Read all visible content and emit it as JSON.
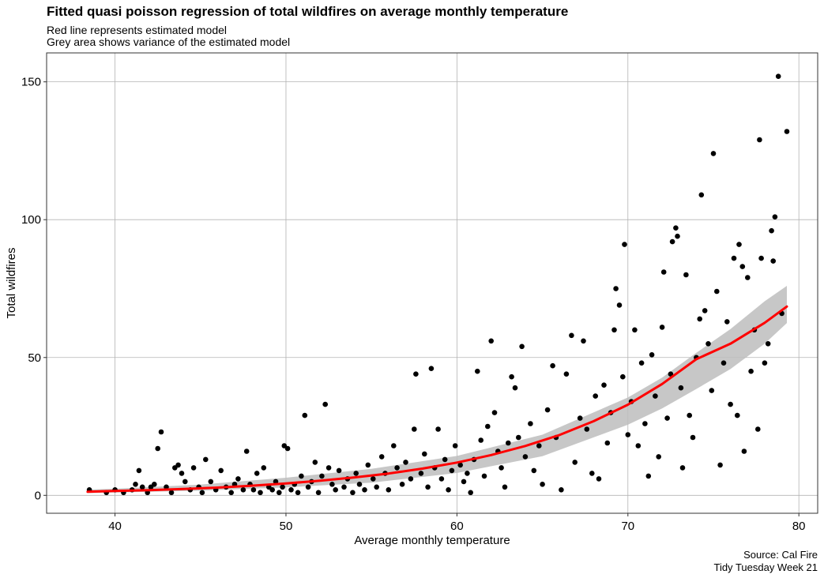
{
  "chart_data": {
    "type": "scatter",
    "title": "Fitted quasi poisson regression of total wildfires on average monthly temperature",
    "subtitle": [
      "Red line represents estimated model",
      "Grey area shows variance of the estimated model"
    ],
    "xlabel": "Average monthly temperature",
    "ylabel": "Total wildfires",
    "caption": [
      "Source: Cal Fire",
      "Tidy Tuesday Week 21"
    ],
    "xlim": [
      36,
      81.1
    ],
    "ylim": [
      -6.5,
      160.5
    ],
    "x_ticks": [
      40,
      50,
      60,
      70,
      80
    ],
    "y_ticks": [
      0,
      50,
      100,
      150
    ],
    "grid": true,
    "line_color": "#ff0000",
    "band_color": "#bdbdbd",
    "point_color": "#000000",
    "model": {
      "name": "Red line represents estimated model",
      "x_range": [
        38.4,
        79.3
      ],
      "x": [
        38.4,
        40,
        42,
        44,
        46,
        48,
        50,
        52,
        54,
        56,
        58,
        60,
        62,
        64,
        66,
        68,
        70,
        72,
        74,
        76,
        78,
        79.3
      ],
      "y": [
        1.3,
        1.6,
        1.9,
        2.3,
        2.8,
        3.5,
        4.3,
        5.3,
        6.5,
        7.9,
        9.7,
        11.9,
        14.6,
        17.9,
        21.9,
        26.9,
        32.9,
        40.4,
        49.4,
        55.0,
        62.6,
        68.5
      ]
    },
    "variance_band": {
      "name": "Grey area shows variance of the estimated model",
      "x": [
        38.4,
        40,
        45,
        50,
        55,
        60,
        65,
        70,
        72,
        74,
        76,
        78,
        79.3
      ],
      "lower": [
        0.8,
        1.0,
        1.7,
        2.9,
        4.6,
        8.1,
        14.2,
        25.6,
        31.5,
        38.6,
        45.8,
        55.0,
        62.5
      ],
      "upper": [
        2.1,
        2.4,
        3.9,
        6.4,
        9.6,
        14.3,
        22.0,
        35.5,
        42.7,
        51.7,
        60.3,
        70.4,
        76.0
      ]
    },
    "points": [
      [
        38.5,
        2
      ],
      [
        39.5,
        1
      ],
      [
        40,
        2
      ],
      [
        40.5,
        1
      ],
      [
        41,
        2
      ],
      [
        41.2,
        4
      ],
      [
        41.4,
        9
      ],
      [
        41.6,
        3
      ],
      [
        41.9,
        1
      ],
      [
        42.1,
        3
      ],
      [
        42.3,
        4
      ],
      [
        42.5,
        17
      ],
      [
        42.7,
        23
      ],
      [
        43.0,
        3
      ],
      [
        43.3,
        1
      ],
      [
        43.5,
        10
      ],
      [
        43.7,
        11
      ],
      [
        43.9,
        8
      ],
      [
        44.1,
        5
      ],
      [
        44.4,
        2
      ],
      [
        44.6,
        10
      ],
      [
        44.9,
        3
      ],
      [
        45.1,
        1
      ],
      [
        45.3,
        13
      ],
      [
        45.6,
        5
      ],
      [
        45.9,
        2
      ],
      [
        46.2,
        9
      ],
      [
        46.5,
        3
      ],
      [
        46.8,
        1
      ],
      [
        47.0,
        4
      ],
      [
        47.2,
        6
      ],
      [
        47.5,
        2
      ],
      [
        47.7,
        16
      ],
      [
        47.9,
        4
      ],
      [
        48.1,
        2
      ],
      [
        48.3,
        8
      ],
      [
        48.5,
        1
      ],
      [
        48.7,
        10
      ],
      [
        49.0,
        3
      ],
      [
        49.2,
        2
      ],
      [
        49.4,
        5
      ],
      [
        49.6,
        1
      ],
      [
        49.8,
        3
      ],
      [
        49.9,
        18
      ],
      [
        50.1,
        17
      ],
      [
        50.3,
        2
      ],
      [
        50.5,
        4
      ],
      [
        50.7,
        1
      ],
      [
        50.9,
        7
      ],
      [
        51.1,
        29
      ],
      [
        51.3,
        3
      ],
      [
        51.5,
        5
      ],
      [
        51.7,
        12
      ],
      [
        51.9,
        1
      ],
      [
        52.1,
        7
      ],
      [
        52.3,
        33
      ],
      [
        52.5,
        10
      ],
      [
        52.7,
        4
      ],
      [
        52.9,
        2
      ],
      [
        53.1,
        9
      ],
      [
        53.4,
        3
      ],
      [
        53.6,
        6
      ],
      [
        53.9,
        1
      ],
      [
        54.1,
        8
      ],
      [
        54.3,
        4
      ],
      [
        54.6,
        2
      ],
      [
        54.8,
        11
      ],
      [
        55.1,
        6
      ],
      [
        55.3,
        3
      ],
      [
        55.6,
        14
      ],
      [
        55.8,
        8
      ],
      [
        56.0,
        2
      ],
      [
        56.3,
        18
      ],
      [
        56.5,
        10
      ],
      [
        56.8,
        4
      ],
      [
        57.0,
        12
      ],
      [
        57.3,
        6
      ],
      [
        57.5,
        24
      ],
      [
        57.6,
        44
      ],
      [
        57.9,
        8
      ],
      [
        58.1,
        15
      ],
      [
        58.3,
        3
      ],
      [
        58.5,
        46
      ],
      [
        58.7,
        10
      ],
      [
        58.9,
        24
      ],
      [
        59.1,
        6
      ],
      [
        59.3,
        13
      ],
      [
        59.5,
        2
      ],
      [
        59.7,
        9
      ],
      [
        59.9,
        18
      ],
      [
        60.2,
        11
      ],
      [
        60.4,
        5
      ],
      [
        60.6,
        8
      ],
      [
        60.8,
        1
      ],
      [
        61.0,
        13
      ],
      [
        61.2,
        45
      ],
      [
        61.4,
        20
      ],
      [
        61.6,
        7
      ],
      [
        61.8,
        25
      ],
      [
        62.0,
        56
      ],
      [
        62.2,
        30
      ],
      [
        62.4,
        16
      ],
      [
        62.6,
        10
      ],
      [
        62.8,
        3
      ],
      [
        63.0,
        19
      ],
      [
        63.2,
        43
      ],
      [
        63.4,
        39
      ],
      [
        63.6,
        21
      ],
      [
        63.8,
        54
      ],
      [
        64.0,
        14
      ],
      [
        64.3,
        26
      ],
      [
        64.5,
        9
      ],
      [
        64.8,
        18
      ],
      [
        65.0,
        4
      ],
      [
        65.3,
        31
      ],
      [
        65.6,
        47
      ],
      [
        65.8,
        21
      ],
      [
        66.1,
        2
      ],
      [
        66.4,
        44
      ],
      [
        66.7,
        58
      ],
      [
        66.9,
        12
      ],
      [
        67.2,
        28
      ],
      [
        67.4,
        56
      ],
      [
        67.6,
        24
      ],
      [
        67.9,
        8
      ],
      [
        68.1,
        36
      ],
      [
        68.3,
        6
      ],
      [
        68.6,
        40
      ],
      [
        68.8,
        19
      ],
      [
        69.0,
        30
      ],
      [
        69.2,
        60
      ],
      [
        69.3,
        75
      ],
      [
        69.5,
        69
      ],
      [
        69.7,
        43
      ],
      [
        69.8,
        91
      ],
      [
        70.0,
        22
      ],
      [
        70.2,
        34
      ],
      [
        70.4,
        60
      ],
      [
        70.6,
        18
      ],
      [
        70.8,
        48
      ],
      [
        71.0,
        26
      ],
      [
        71.2,
        7
      ],
      [
        71.4,
        51
      ],
      [
        71.6,
        36
      ],
      [
        71.8,
        14
      ],
      [
        72.0,
        61
      ],
      [
        72.1,
        81
      ],
      [
        72.3,
        28
      ],
      [
        72.5,
        44
      ],
      [
        72.6,
        92
      ],
      [
        72.8,
        97
      ],
      [
        72.9,
        94
      ],
      [
        73.1,
        39
      ],
      [
        73.2,
        10
      ],
      [
        73.4,
        80
      ],
      [
        73.6,
        29
      ],
      [
        73.8,
        21
      ],
      [
        74.0,
        50
      ],
      [
        74.2,
        64
      ],
      [
        74.3,
        109
      ],
      [
        74.5,
        67
      ],
      [
        74.7,
        55
      ],
      [
        74.9,
        38
      ],
      [
        75.0,
        124
      ],
      [
        75.2,
        74
      ],
      [
        75.4,
        11
      ],
      [
        75.6,
        48
      ],
      [
        75.8,
        63
      ],
      [
        76.0,
        33
      ],
      [
        76.2,
        86
      ],
      [
        76.4,
        29
      ],
      [
        76.5,
        91
      ],
      [
        76.7,
        83
      ],
      [
        76.8,
        16
      ],
      [
        77.0,
        79
      ],
      [
        77.2,
        45
      ],
      [
        77.4,
        60
      ],
      [
        77.6,
        24
      ],
      [
        77.7,
        129
      ],
      [
        77.8,
        86
      ],
      [
        78.0,
        48
      ],
      [
        78.2,
        55
      ],
      [
        78.4,
        96
      ],
      [
        78.5,
        85
      ],
      [
        78.6,
        101
      ],
      [
        78.8,
        152
      ],
      [
        79.0,
        66
      ],
      [
        79.3,
        132
      ]
    ]
  }
}
